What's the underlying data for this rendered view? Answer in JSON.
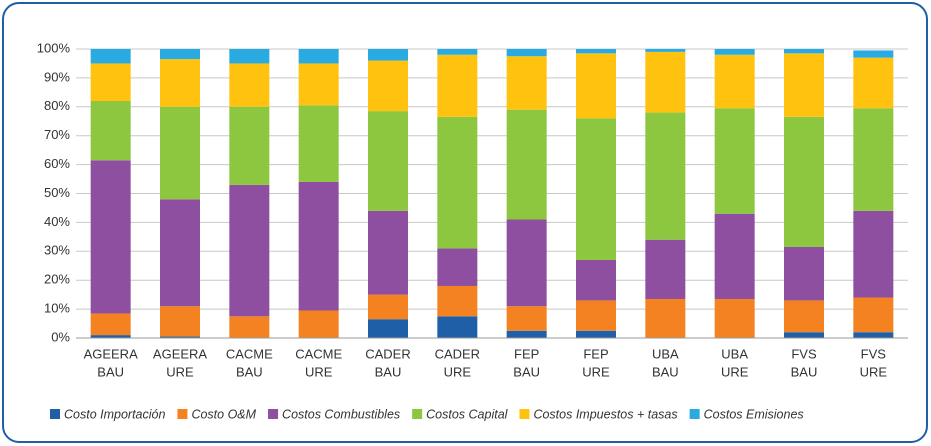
{
  "chart_data": {
    "type": "stacked_bar",
    "categories": [
      [
        "AGEERA",
        "BAU"
      ],
      [
        "AGEERA",
        "URE"
      ],
      [
        "CACME",
        "BAU"
      ],
      [
        "CACME",
        "URE"
      ],
      [
        "CADER",
        "BAU"
      ],
      [
        "CADER",
        "URE"
      ],
      [
        "FEP",
        "BAU"
      ],
      [
        "FEP",
        "URE"
      ],
      [
        "UBA",
        "BAU"
      ],
      [
        "UBA",
        "URE"
      ],
      [
        "FVS",
        "BAU"
      ],
      [
        "FVS",
        "URE"
      ]
    ],
    "series": [
      {
        "name": "Costo Importación",
        "color": "#1f5fa8",
        "values": [
          1,
          0.5,
          0,
          0,
          6.5,
          7.5,
          2.5,
          2.5,
          0,
          0,
          2,
          2
        ]
      },
      {
        "name": "Costo O&M",
        "color": "#f58220",
        "values": [
          7.5,
          10.5,
          7.5,
          9.5,
          8.5,
          10.5,
          8.5,
          10.5,
          13.5,
          13.5,
          11,
          12
        ]
      },
      {
        "name": "Costos Combustibles",
        "color": "#8e4fa0",
        "values": [
          53,
          37,
          45.5,
          44.5,
          29,
          13,
          30,
          14,
          20.5,
          29.5,
          18.5,
          30
        ]
      },
      {
        "name": "Costos Capital",
        "color": "#8dc63f",
        "values": [
          20.5,
          32,
          27,
          26.5,
          34.5,
          45.5,
          38,
          49,
          44,
          36.5,
          45,
          35.5
        ]
      },
      {
        "name": "Costos Impuestos  + tasas",
        "color": "#ffc20e",
        "values": [
          13,
          16.5,
          15,
          14.5,
          17.5,
          21.5,
          18.5,
          22.5,
          21,
          18.5,
          22,
          17.5
        ]
      },
      {
        "name": "Costos Emisiones",
        "color": "#29abe2",
        "values": [
          5,
          3.5,
          5,
          5,
          4,
          2,
          2.5,
          1.5,
          1,
          2,
          1.5,
          2.5
        ]
      }
    ],
    "ylim": [
      0,
      100
    ],
    "yticks": [
      {
        "value": 0,
        "label": "0%"
      },
      {
        "value": 10,
        "label": "10%"
      },
      {
        "value": 20,
        "label": "20%"
      },
      {
        "value": 30,
        "label": "30%"
      },
      {
        "value": 40,
        "label": "40%"
      },
      {
        "value": 50,
        "label": "50%"
      },
      {
        "value": 60,
        "label": "60%"
      },
      {
        "value": 70,
        "label": "70%"
      },
      {
        "value": 80,
        "label": "80%"
      },
      {
        "value": 90,
        "label": "90%"
      },
      {
        "value": 100,
        "label": "100%"
      }
    ],
    "grid": true,
    "legend": "bottom"
  }
}
